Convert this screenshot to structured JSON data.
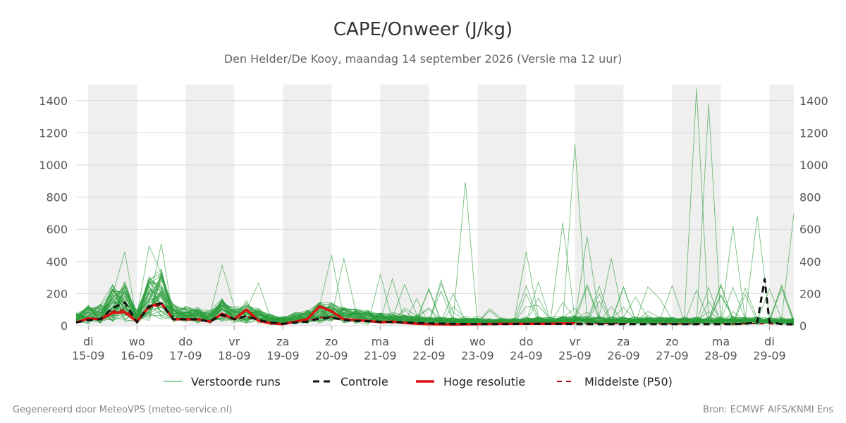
{
  "chart_data": {
    "type": "line",
    "title": "CAPE/Onweer (J/kg)",
    "subtitle": "Den Helder/De Kooy, maandag 14 september 2026 (Versie ma 12 uur)",
    "ylim": [
      0,
      1500
    ],
    "yticks": [
      0,
      200,
      400,
      600,
      800,
      1000,
      1200,
      1400
    ],
    "xlim": [
      -0.25,
      14.5
    ],
    "x_unit": "days after 15-09 00:00",
    "x_ticks": [
      {
        "x": 0,
        "day": "di",
        "date": "15-09"
      },
      {
        "x": 1,
        "day": "wo",
        "date": "16-09"
      },
      {
        "x": 2,
        "day": "do",
        "date": "17-09"
      },
      {
        "x": 3,
        "day": "vr",
        "date": "18-09"
      },
      {
        "x": 4,
        "day": "za",
        "date": "19-09"
      },
      {
        "x": 5,
        "day": "zo",
        "date": "20-09"
      },
      {
        "x": 6,
        "day": "ma",
        "date": "21-09"
      },
      {
        "x": 7,
        "day": "di",
        "date": "22-09"
      },
      {
        "x": 8,
        "day": "wo",
        "date": "23-09"
      },
      {
        "x": 9,
        "day": "do",
        "date": "24-09"
      },
      {
        "x": 10,
        "day": "vr",
        "date": "25-09"
      },
      {
        "x": 11,
        "day": "za",
        "date": "26-09"
      },
      {
        "x": 12,
        "day": "zo",
        "date": "27-09"
      },
      {
        "x": 13,
        "day": "ma",
        "date": "28-09"
      },
      {
        "x": 14,
        "day": "di",
        "date": "29-09"
      }
    ],
    "weekend_bands": [
      [
        0,
        1
      ],
      [
        2,
        3
      ],
      [
        4,
        5
      ],
      [
        6,
        7
      ],
      [
        8,
        9
      ],
      [
        10,
        11
      ],
      [
        12,
        13
      ],
      [
        14,
        14.5
      ]
    ],
    "grid": true,
    "legend_position": "bottom",
    "series": [
      {
        "name": "Hoge resolutie",
        "color": "#dd1111",
        "x": [
          -0.25,
          0,
          0.25,
          0.5,
          0.75,
          1,
          1.25,
          1.5,
          1.75,
          2,
          2.25,
          2.5,
          2.75,
          3,
          3.25,
          3.5,
          3.75,
          4,
          4.25,
          4.5,
          4.75,
          5,
          5.25,
          5.5,
          5.75,
          6,
          6.25,
          6.5,
          6.75,
          7,
          7.5,
          8,
          8.5,
          9,
          9.5,
          10
        ],
        "values": [
          20,
          45,
          40,
          80,
          85,
          25,
          120,
          140,
          40,
          40,
          40,
          25,
          75,
          40,
          100,
          30,
          15,
          10,
          25,
          40,
          120,
          90,
          40,
          35,
          30,
          22,
          25,
          18,
          12,
          10,
          8,
          10,
          12,
          12,
          12,
          15
        ]
      },
      {
        "name": "Controle",
        "color": "#111111",
        "x": [
          -0.25,
          0,
          0.25,
          0.5,
          0.75,
          1,
          1.25,
          1.5,
          1.75,
          2,
          2.25,
          2.5,
          2.75,
          3,
          3.25,
          3.5,
          3.75,
          4,
          4.25,
          4.5,
          4.75,
          5,
          5.25,
          5.5,
          5.75,
          6,
          6.5,
          7,
          7.5,
          8,
          8.5,
          9,
          9.5,
          10,
          10.5,
          11,
          11.5,
          12,
          12.5,
          13,
          13.25,
          13.5,
          13.75,
          13.9,
          14,
          14.25,
          14.5
        ],
        "values": [
          20,
          35,
          40,
          110,
          145,
          20,
          120,
          140,
          40,
          40,
          40,
          25,
          70,
          40,
          60,
          35,
          20,
          12,
          20,
          25,
          45,
          50,
          35,
          30,
          28,
          25,
          20,
          15,
          12,
          10,
          10,
          12,
          12,
          10,
          10,
          10,
          10,
          10,
          10,
          10,
          10,
          12,
          20,
          290,
          20,
          10,
          8
        ]
      },
      {
        "name": "Middelste (P50)",
        "color": "#a01010",
        "x": [
          -0.25,
          0,
          0.25,
          0.5,
          0.75,
          1,
          1.25,
          1.5,
          1.75,
          2,
          2.25,
          2.5,
          2.75,
          3,
          3.25,
          3.5,
          3.75,
          4,
          4.25,
          4.5,
          4.75,
          5,
          5.25,
          5.5,
          5.75,
          6,
          6.5,
          7,
          7.5,
          8,
          8.5,
          9,
          9.5,
          10,
          10.5,
          11,
          11.5,
          12,
          12.5,
          13,
          13.5,
          14,
          14.5
        ],
        "values": [
          25,
          40,
          45,
          90,
          100,
          30,
          110,
          130,
          45,
          40,
          40,
          28,
          60,
          40,
          55,
          35,
          20,
          15,
          25,
          30,
          50,
          55,
          40,
          35,
          30,
          25,
          20,
          15,
          12,
          10,
          10,
          12,
          14,
          15,
          14,
          13,
          12,
          12,
          12,
          12,
          14,
          12,
          10
        ]
      }
    ],
    "ensemble": {
      "name": "Verstoorde runs",
      "color": "#2a9d3a",
      "member_count": 50,
      "highlights": [
        {
          "x": 0.75,
          "value": 460
        },
        {
          "x": 1.25,
          "value": 495
        },
        {
          "x": 1.5,
          "value": 510
        },
        {
          "x": 2.75,
          "value": 375
        },
        {
          "x": 3.5,
          "value": 265
        },
        {
          "x": 5.0,
          "value": 440
        },
        {
          "x": 5.25,
          "value": 420
        },
        {
          "x": 6.0,
          "value": 320
        },
        {
          "x": 7.75,
          "value": 895
        },
        {
          "x": 9.0,
          "value": 460
        },
        {
          "x": 9.75,
          "value": 640
        },
        {
          "x": 10.0,
          "value": 1130
        },
        {
          "x": 10.25,
          "value": 555
        },
        {
          "x": 10.75,
          "value": 420
        },
        {
          "x": 12.5,
          "value": 1475
        },
        {
          "x": 12.75,
          "value": 1380
        },
        {
          "x": 13.25,
          "value": 620
        },
        {
          "x": 13.75,
          "value": 680
        },
        {
          "x": 14.5,
          "value": 695
        }
      ]
    },
    "legend": [
      {
        "key": "ensemble",
        "label": "Verstoorde runs"
      },
      {
        "key": "controle",
        "label": "Controle"
      },
      {
        "key": "hires",
        "label": "Hoge resolutie"
      },
      {
        "key": "p50",
        "label": "Middelste (P50)"
      }
    ]
  },
  "footer": {
    "left": "Gegenereerd door MeteoVPS (meteo-service.nl)",
    "right": "Bron: ECMWF AIFS/KNMI Ens"
  }
}
